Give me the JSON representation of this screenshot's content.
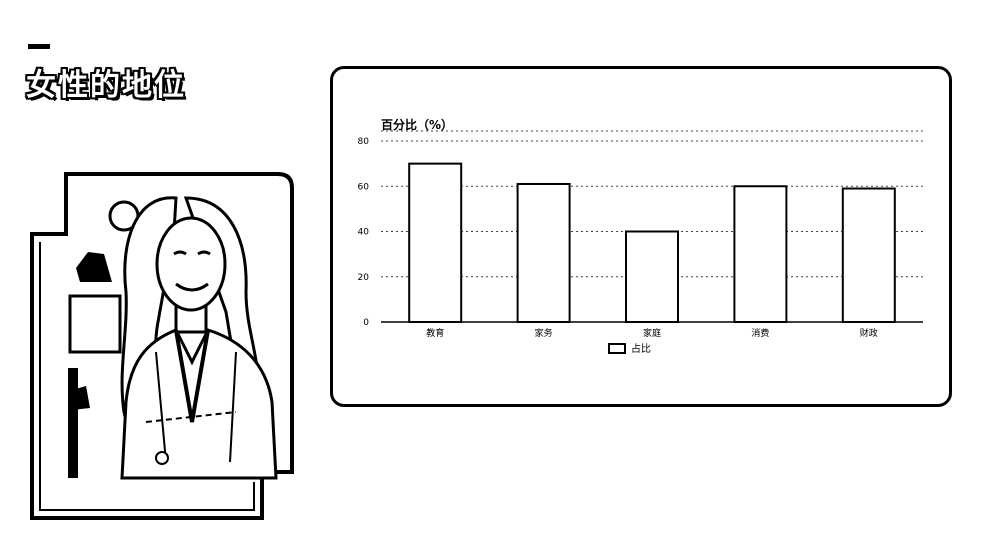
{
  "page": {
    "title": "女性的地位"
  },
  "chart_data": {
    "type": "bar",
    "ylabel": "百分比（%）",
    "categories": [
      "教育",
      "家务",
      "家庭",
      "消费",
      "财政"
    ],
    "series": [
      {
        "name": "占比",
        "values": [
          70,
          61,
          40,
          60,
          59
        ]
      }
    ],
    "ylim": [
      0,
      80
    ],
    "yticks": [
      0,
      20,
      40,
      60,
      80
    ],
    "grid": true,
    "legend": "bottom-center",
    "colors": {
      "bar_fill": "#ffffff",
      "bar_stroke": "#000000",
      "grid": "#444444"
    }
  }
}
